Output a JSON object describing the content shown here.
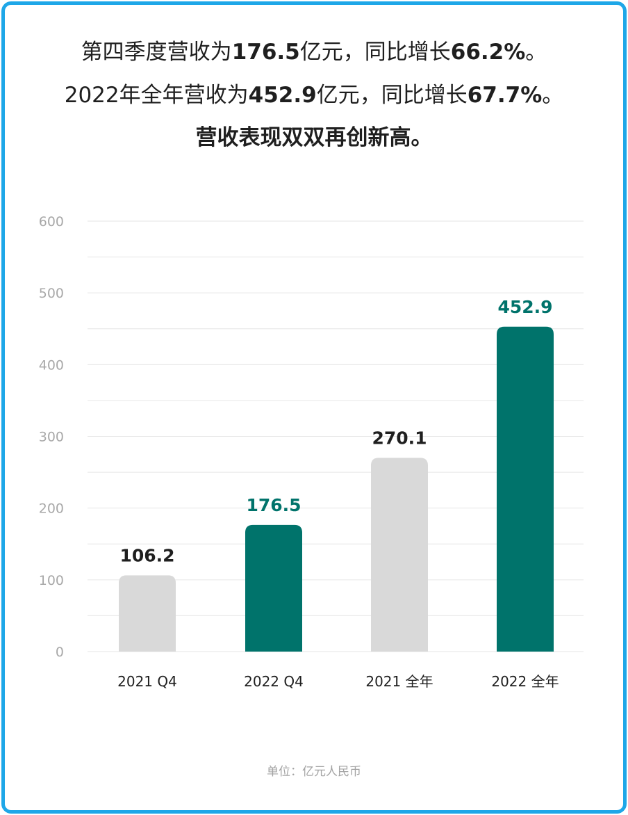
{
  "header": {
    "line1": {
      "prefix": "第四季度营收为",
      "value": "176.5",
      "mid": "亿元，同比增长",
      "growth": "66.2%",
      "suffix": "。"
    },
    "line2": {
      "prefix": "2022年全年营收为",
      "value": "452.9",
      "mid": "亿元，同比增长",
      "growth": "67.7%",
      "suffix": "。"
    },
    "line3": "营收表现双双再创新高。"
  },
  "footer": {
    "unit": "单位：亿元人民币"
  },
  "colors": {
    "border": "#1ea7e8",
    "highlight": "#00736b",
    "muted": "#d9d9d9",
    "text": "#1f1f1f"
  },
  "chart_data": {
    "type": "bar",
    "title": "",
    "xlabel": "",
    "ylabel": "",
    "categories": [
      "2021 Q4",
      "2022 Q4",
      "2021 全年",
      "2022 全年"
    ],
    "values": [
      106.2,
      176.5,
      270.1,
      452.9
    ],
    "value_labels": [
      "106.2",
      "176.5",
      "270.1",
      "452.9"
    ],
    "bar_colors": [
      "#d9d9d9",
      "#00736b",
      "#d9d9d9",
      "#00736b"
    ],
    "label_colors": [
      "#1f1f1f",
      "#00736b",
      "#1f1f1f",
      "#00736b"
    ],
    "ylim": [
      0,
      600
    ],
    "yticks": [
      0,
      100,
      200,
      300,
      400,
      500,
      600
    ],
    "grid": true,
    "legend": "none"
  }
}
